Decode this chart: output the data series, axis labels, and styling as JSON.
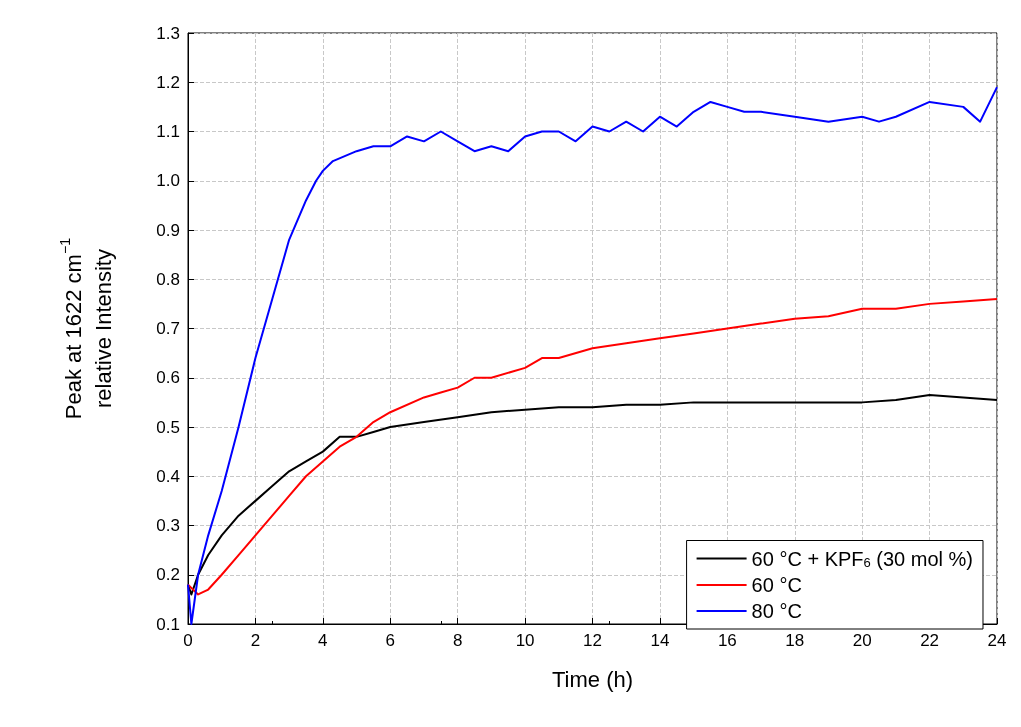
{
  "chart_data": {
    "type": "line",
    "xlabel": "Time (h)",
    "ylabel": "Peak at 1622 cm$^{−1}$\nrelative Intensity",
    "xlim": [
      0,
      24
    ],
    "xticks": [
      0,
      2,
      4,
      6,
      8,
      10,
      12,
      14,
      16,
      18,
      20,
      22,
      24
    ],
    "ylim": [
      0.1,
      1.3
    ],
    "yticks": [
      0.1,
      0.2,
      0.3,
      0.4,
      0.5,
      0.6,
      0.7,
      0.8,
      0.9,
      {
        "value": 1,
        "label": "1.0"
      },
      1.1,
      1.2,
      1.3
    ],
    "grid": true,
    "legend": "bottom right",
    "marker": "none",
    "line_style": "solid",
    "series": [
      {
        "name": "60 °C + KPF$_{6}$ (30 mol %)",
        "color": "#000000",
        "x": [
          0,
          0.1,
          0.3,
          0.6,
          1,
          1.5,
          2,
          2.5,
          3,
          3.5,
          4,
          4.5,
          5,
          5.5,
          6,
          7,
          8,
          9,
          10,
          11,
          12,
          13,
          14,
          15,
          16,
          17,
          18,
          19,
          20,
          21,
          22,
          23,
          24
        ],
        "values": [
          0.18,
          0.16,
          0.2,
          0.24,
          0.28,
          0.32,
          0.35,
          0.38,
          0.41,
          0.43,
          0.45,
          0.48,
          0.48,
          0.49,
          0.5,
          0.51,
          0.52,
          0.53,
          0.535,
          0.54,
          0.54,
          0.545,
          0.545,
          0.55,
          0.55,
          0.55,
          0.55,
          0.55,
          0.55,
          0.555,
          0.565,
          0.56,
          0.555
        ]
      },
      {
        "name": "60 °C",
        "color": "#ff0000",
        "x": [
          0,
          0.3,
          0.6,
          1,
          1.5,
          2,
          2.5,
          3,
          3.5,
          4,
          4.5,
          5,
          5.5,
          6,
          7,
          7.5,
          8,
          8.5,
          9,
          10,
          10.5,
          11,
          12,
          13,
          14,
          15,
          16,
          17,
          18,
          19,
          20,
          21,
          22,
          23,
          24
        ],
        "values": [
          0.18,
          0.16,
          0.17,
          0.2,
          0.24,
          0.28,
          0.32,
          0.36,
          0.4,
          0.43,
          0.46,
          0.48,
          0.51,
          0.53,
          0.56,
          0.57,
          0.58,
          0.6,
          0.6,
          0.62,
          0.64,
          0.64,
          0.66,
          0.67,
          0.68,
          0.69,
          0.7,
          0.71,
          0.72,
          0.725,
          0.74,
          0.74,
          0.75,
          0.755,
          0.76
        ]
      },
      {
        "name": "80 °C",
        "color": "#0000ff",
        "x": [
          0,
          0.1,
          0.3,
          0.6,
          1,
          1.5,
          2,
          2.5,
          3,
          3.5,
          3.8,
          4,
          4.3,
          5,
          5.5,
          6,
          6.5,
          7,
          7.5,
          8,
          8.5,
          9,
          9.5,
          10,
          10.5,
          11,
          11.5,
          12,
          12.5,
          13,
          13.5,
          14,
          14.5,
          15,
          15.5,
          16,
          16.5,
          17,
          18,
          19,
          20,
          20.5,
          21,
          22,
          23,
          23.5,
          24
        ],
        "values": [
          0.18,
          0.1,
          0.2,
          0.28,
          0.37,
          0.5,
          0.64,
          0.76,
          0.88,
          0.96,
          1.0,
          1.02,
          1.04,
          1.06,
          1.07,
          1.07,
          1.09,
          1.08,
          1.1,
          1.08,
          1.06,
          1.07,
          1.06,
          1.09,
          1.1,
          1.1,
          1.08,
          1.11,
          1.1,
          1.12,
          1.1,
          1.13,
          1.11,
          1.14,
          1.16,
          1.15,
          1.14,
          1.14,
          1.13,
          1.12,
          1.13,
          1.12,
          1.13,
          1.16,
          1.15,
          1.12,
          1.19
        ]
      }
    ]
  }
}
